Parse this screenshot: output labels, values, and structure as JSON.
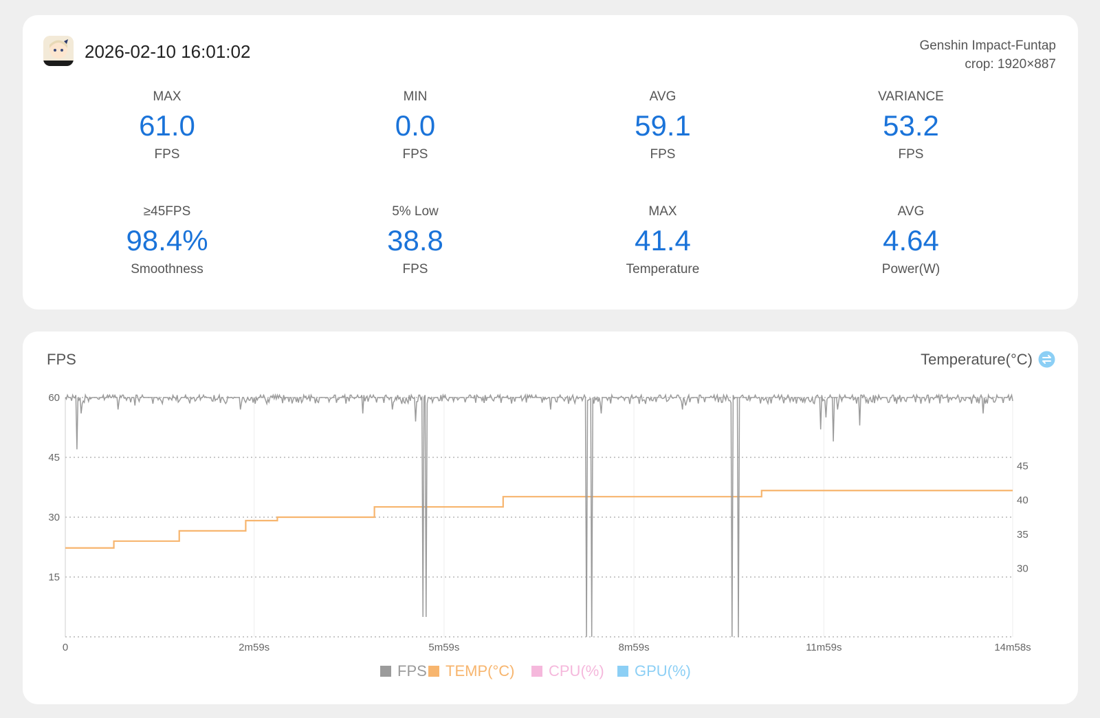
{
  "header": {
    "datetime": "2026-02-10 16:01:02",
    "app_name": "Genshin Impact-Funtap",
    "crop": "crop: 1920×887",
    "app_icon": "game-app-icon"
  },
  "stats": [
    {
      "label": "MAX",
      "value": "61.0",
      "unit": "FPS"
    },
    {
      "label": "MIN",
      "value": "0.0",
      "unit": "FPS"
    },
    {
      "label": "AVG",
      "value": "59.1",
      "unit": "FPS"
    },
    {
      "label": "VARIANCE",
      "value": "53.2",
      "unit": "FPS"
    },
    {
      "label": "≥45FPS",
      "value": "98.4%",
      "unit": "Smoothness"
    },
    {
      "label": "5% Low",
      "value": "38.8",
      "unit": "FPS"
    },
    {
      "label": "MAX",
      "value": "41.4",
      "unit": "Temperature"
    },
    {
      "label": "AVG",
      "value": "4.64",
      "unit": "Power(W)"
    }
  ],
  "chart_panel": {
    "left_title": "FPS",
    "right_title": "Temperature(°C)",
    "swap_icon": "swap-icon"
  },
  "colors": {
    "accent": "#1a73d9",
    "fps": "#9b9b9b",
    "temp": "#f7b56e",
    "cpu": "#f5b8dc",
    "gpu": "#8ccff5"
  },
  "chart_data": {
    "type": "line",
    "x_unit": "seconds",
    "x_ticks": [
      {
        "value": 0,
        "label": "0"
      },
      {
        "value": 179,
        "label": "2m59s"
      },
      {
        "value": 359,
        "label": "5m59s"
      },
      {
        "value": 539,
        "label": "8m59s"
      },
      {
        "value": 719,
        "label": "11m59s"
      },
      {
        "value": 898,
        "label": "14m58s"
      }
    ],
    "xlim": [
      0,
      898
    ],
    "y_left": {
      "ticks": [
        15,
        30,
        45,
        60
      ],
      "range": [
        0,
        60
      ],
      "grid": true
    },
    "y_right": {
      "ticks": [
        30,
        35,
        40,
        45
      ],
      "range": [
        20,
        55
      ]
    },
    "fps_baseline": 60,
    "fps_dips": [
      [
        11,
        47
      ],
      [
        15,
        56
      ],
      [
        50,
        57
      ],
      [
        66,
        58
      ],
      [
        166,
        57
      ],
      [
        282,
        56
      ],
      [
        310,
        57
      ],
      [
        332,
        54
      ],
      [
        339,
        5
      ],
      [
        342,
        5
      ],
      [
        460,
        57
      ],
      [
        494,
        0
      ],
      [
        499,
        0
      ],
      [
        508,
        56
      ],
      [
        585,
        57
      ],
      [
        588,
        58
      ],
      [
        632,
        0
      ],
      [
        638,
        0
      ],
      [
        716,
        52
      ],
      [
        721,
        55
      ],
      [
        728,
        49
      ],
      [
        732,
        57
      ],
      [
        753,
        53
      ],
      [
        870,
        56
      ]
    ],
    "temp_steps": [
      [
        0,
        33
      ],
      [
        46,
        34
      ],
      [
        108,
        35.5
      ],
      [
        171,
        37
      ],
      [
        201,
        37.5
      ],
      [
        293,
        39
      ],
      [
        415,
        40.5
      ],
      [
        660,
        41.4
      ],
      [
        898,
        41.4
      ]
    ],
    "legend": [
      {
        "name": "FPS",
        "color": "#9b9b9b"
      },
      {
        "name": "TEMP(°C)",
        "color": "#f7b56e"
      },
      {
        "name": "CPU(%)",
        "color": "#f5b8dc"
      },
      {
        "name": "GPU(%)",
        "color": "#8ccff5"
      }
    ]
  }
}
